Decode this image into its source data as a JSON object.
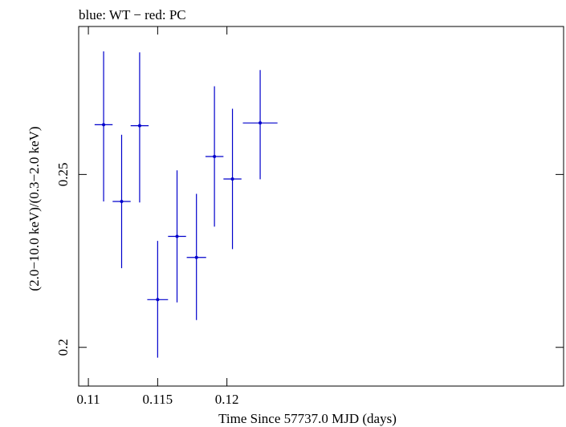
{
  "chart_data": {
    "type": "scatter",
    "title": "blue: WT − red: PC",
    "xlabel": "Time Since 57737.0 MJD (days)",
    "ylabel": "(2.0−10.0 keV)/(0.3−2.0 keV)",
    "xlim": [
      0.1093,
      0.1443
    ],
    "ylim": [
      0.1888,
      0.2928
    ],
    "xticks": [
      {
        "value": 0.11,
        "label": "0.11"
      },
      {
        "value": 0.115,
        "label": "0.115"
      },
      {
        "value": 0.12,
        "label": "0.12"
      }
    ],
    "yticks": [
      {
        "value": 0.2,
        "label": "0.2"
      },
      {
        "value": 0.25,
        "label": "0.25"
      }
    ],
    "grid": false,
    "series": [
      {
        "name": "WT",
        "color": "#0000cc",
        "points": [
          {
            "x": 0.1111,
            "xerr": 0.00065,
            "y": 0.2644,
            "yerr_lo": 0.0222,
            "yerr_hi": 0.0212
          },
          {
            "x": 0.1124,
            "xerr": 0.00065,
            "y": 0.2422,
            "yerr_lo": 0.0193,
            "yerr_hi": 0.0193
          },
          {
            "x": 0.1137,
            "xerr": 0.00065,
            "y": 0.2641,
            "yerr_lo": 0.0222,
            "yerr_hi": 0.0212
          },
          {
            "x": 0.115,
            "xerr": 0.00075,
            "y": 0.2138,
            "yerr_lo": 0.0168,
            "yerr_hi": 0.017
          },
          {
            "x": 0.1164,
            "xerr": 0.00065,
            "y": 0.2321,
            "yerr_lo": 0.0191,
            "yerr_hi": 0.0191
          },
          {
            "x": 0.1178,
            "xerr": 0.0007,
            "y": 0.226,
            "yerr_lo": 0.0181,
            "yerr_hi": 0.0184
          },
          {
            "x": 0.1191,
            "xerr": 0.00065,
            "y": 0.2552,
            "yerr_lo": 0.0203,
            "yerr_hi": 0.0203
          },
          {
            "x": 0.1204,
            "xerr": 0.00065,
            "y": 0.2487,
            "yerr_lo": 0.0203,
            "yerr_hi": 0.0203
          },
          {
            "x": 0.1224,
            "xerr": 0.00125,
            "y": 0.2649,
            "yerr_lo": 0.0163,
            "yerr_hi": 0.0153
          }
        ]
      }
    ]
  }
}
